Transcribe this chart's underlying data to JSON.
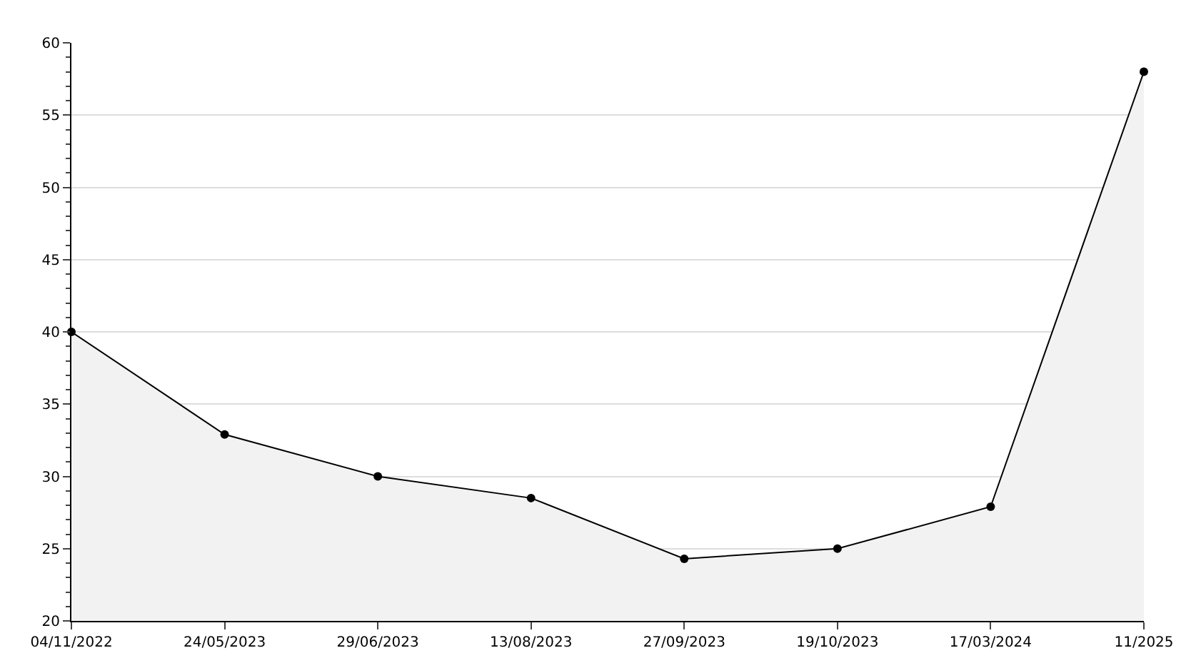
{
  "chart_data": {
    "type": "area",
    "categories": [
      "04/11/2022",
      "24/05/2023",
      "29/06/2023",
      "13/08/2023",
      "27/09/2023",
      "19/10/2023",
      "17/03/2024",
      "11/2025"
    ],
    "series": [
      {
        "color": "#000000",
        "values": [
          40,
          32.9,
          30,
          28.5,
          24.3,
          25,
          27.9,
          58
        ]
      }
    ],
    "ylim": [
      20,
      60
    ],
    "yticks": [
      20,
      25,
      30,
      35,
      40,
      45,
      50,
      55,
      60
    ],
    "grid": "y",
    "marker": "circle",
    "line_style": "solid",
    "legend": false
  }
}
